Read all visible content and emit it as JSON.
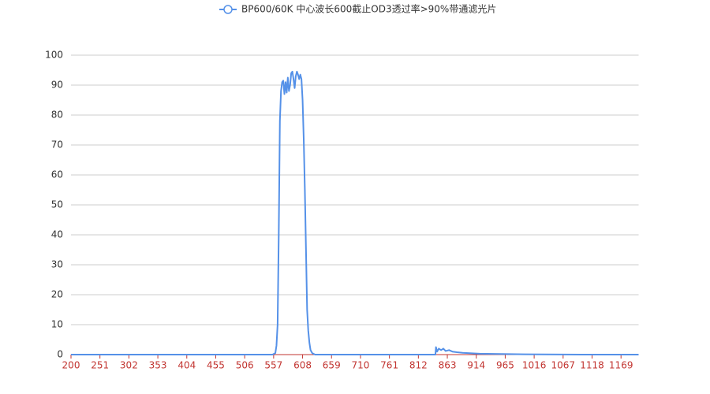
{
  "chart_data": {
    "type": "line",
    "x": [
      200,
      251,
      302,
      353,
      404,
      455,
      506,
      540,
      555,
      560,
      562,
      564,
      566,
      568,
      570,
      572,
      574,
      576,
      578,
      580,
      582,
      584,
      586,
      588,
      590,
      592,
      594,
      596,
      598,
      600,
      602,
      604,
      606,
      608,
      610,
      612,
      614,
      616,
      618,
      620,
      622,
      625,
      630,
      659,
      710,
      761,
      812,
      842,
      843,
      845,
      848,
      852,
      856,
      860,
      866,
      872,
      880,
      890,
      900,
      920,
      960,
      1000,
      1100,
      1200
    ],
    "series": [
      {
        "name": "BP600/60K 中心波长600截止OD3透过率>90%带通滤光片",
        "color": "#5591e8",
        "values": [
          0,
          0,
          0,
          0,
          0,
          0,
          0,
          0,
          0,
          0.5,
          3,
          10,
          40,
          78,
          88,
          91,
          91.5,
          87,
          91,
          87.5,
          92.5,
          88,
          90,
          94,
          94.5,
          92,
          89,
          93,
          94.5,
          93.5,
          92,
          93.5,
          92,
          85,
          72,
          55,
          35,
          15,
          8,
          4,
          1.5,
          0.5,
          0,
          0,
          0,
          0,
          0,
          0,
          2.5,
          1,
          2,
          1.5,
          2,
          1.2,
          1.5,
          1,
          0.8,
          0.6,
          0.5,
          0.3,
          0.2,
          0.1,
          0,
          0
        ]
      }
    ],
    "xlim": [
      200,
      1200
    ],
    "xticks": [
      200,
      251,
      302,
      353,
      404,
      455,
      506,
      557,
      608,
      659,
      710,
      761,
      812,
      863,
      914,
      965,
      1016,
      1067,
      1118,
      1169
    ],
    "ylim": [
      0,
      100
    ],
    "yticks": [
      0,
      10,
      20,
      30,
      40,
      50,
      60,
      70,
      80,
      90,
      100
    ],
    "grid": true
  }
}
